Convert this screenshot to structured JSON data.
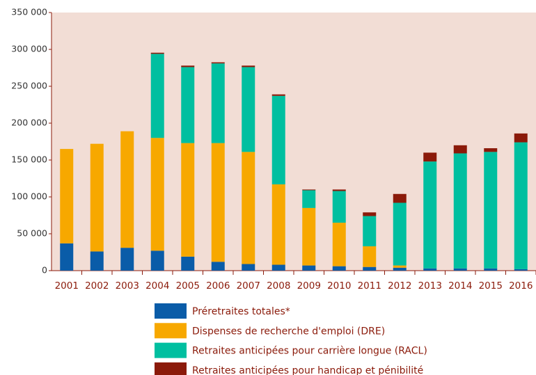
{
  "chart_data": {
    "type": "stacked_bar",
    "categories": [
      "2001",
      "2002",
      "2003",
      "2004",
      "2005",
      "2006",
      "2007",
      "2008",
      "2009",
      "2010",
      "2011",
      "2012",
      "2013",
      "2014",
      "2015",
      "2016"
    ],
    "series": [
      {
        "name": "Préretraites totales*",
        "color": "#0a5ca8",
        "values": [
          37000,
          26000,
          31000,
          27000,
          19000,
          12000,
          9000,
          8000,
          7000,
          6000,
          5000,
          4000,
          3000,
          3000,
          3000,
          2000
        ]
      },
      {
        "name": "Dispenses de recherche d'emploi (DRE)",
        "color": "#f7a800",
        "values": [
          128000,
          146000,
          158000,
          153000,
          154000,
          161000,
          152000,
          109000,
          78000,
          59000,
          28000,
          3000,
          0,
          0,
          0,
          0
        ]
      },
      {
        "name": "Retraites anticipées pour carrière longue (RACL)",
        "color": "#00bfa0",
        "values": [
          0,
          0,
          0,
          114000,
          103000,
          108000,
          115000,
          120000,
          24000,
          43000,
          41000,
          85000,
          145000,
          156000,
          158000,
          172000
        ]
      },
      {
        "name": "Retraites anticipées pour handicap et pénibilité",
        "color": "#8b1a0a",
        "values": [
          0,
          0,
          0,
          1500,
          2000,
          1500,
          2000,
          2000,
          1000,
          2000,
          5000,
          12000,
          12000,
          11000,
          5000,
          12000
        ]
      }
    ],
    "ylim": [
      0,
      350000
    ],
    "yticks": [
      0,
      {
        "value": 50000,
        "label": "50 000"
      },
      {
        "value": 100000,
        "label": "100 000"
      },
      {
        "value": 150000,
        "label": "150 000"
      },
      {
        "value": 200000,
        "label": "200 000"
      },
      {
        "value": 250000,
        "label": "250 000"
      },
      {
        "value": 300000,
        "label": "300 000"
      },
      {
        "value": 350000,
        "label": "350 000"
      }
    ],
    "plot_background": "#f2ddd5"
  }
}
